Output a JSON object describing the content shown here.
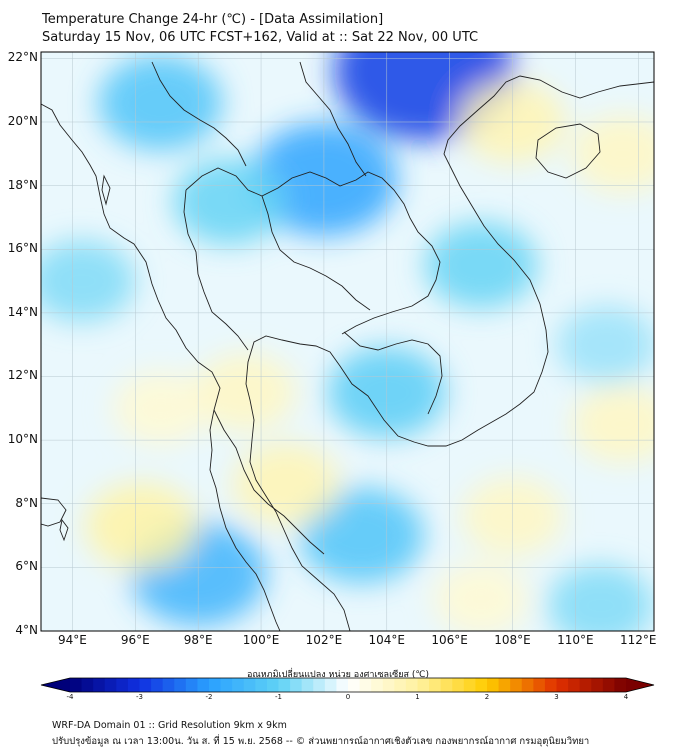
{
  "title": {
    "line1": "Temperature Change 24-hr (℃) - [Data Assimilation]",
    "line2": "Saturday 15 Nov, 06 UTC FCST+162, Valid at :: Sat 22 Nov, 00 UTC"
  },
  "map": {
    "lon_range": [
      93,
      112.5
    ],
    "lat_range": [
      4,
      22.2
    ],
    "lat_ticks": [
      {
        "value": 22,
        "label": "22°N"
      },
      {
        "value": 20,
        "label": "20°N"
      },
      {
        "value": 18,
        "label": "18°N"
      },
      {
        "value": 16,
        "label": "16°N"
      },
      {
        "value": 14,
        "label": "14°N"
      },
      {
        "value": 12,
        "label": "12°N"
      },
      {
        "value": 10,
        "label": "10°N"
      },
      {
        "value": 8,
        "label": "8°N"
      },
      {
        "value": 6,
        "label": "6°N"
      },
      {
        "value": 4,
        "label": "4°N"
      }
    ],
    "lon_ticks": [
      {
        "value": 94,
        "label": "94°E"
      },
      {
        "value": 96,
        "label": "96°E"
      },
      {
        "value": 98,
        "label": "98°E"
      },
      {
        "value": 100,
        "label": "100°E"
      },
      {
        "value": 102,
        "label": "102°E"
      },
      {
        "value": 104,
        "label": "104°E"
      },
      {
        "value": 106,
        "label": "106°E"
      },
      {
        "value": 108,
        "label": "108°E"
      },
      {
        "value": 110,
        "label": "110°E"
      },
      {
        "value": 112,
        "label": "112°E"
      }
    ],
    "anomalies_degC": [
      {
        "lon": 105.2,
        "lat": 21.6,
        "value": -1.8
      },
      {
        "lon": 102.0,
        "lat": 18.2,
        "value": -1.2
      },
      {
        "lon": 96.8,
        "lat": 20.6,
        "value": -0.8
      },
      {
        "lon": 99.0,
        "lat": 17.5,
        "value": -0.6
      },
      {
        "lon": 98.0,
        "lat": 5.8,
        "value": -1.0
      },
      {
        "lon": 104.0,
        "lat": 11.5,
        "value": -0.7
      },
      {
        "lon": 103.2,
        "lat": 7.0,
        "value": -0.8
      },
      {
        "lon": 107.0,
        "lat": 15.5,
        "value": -0.6
      },
      {
        "lon": 110.8,
        "lat": 4.8,
        "value": -0.5
      },
      {
        "lon": 111.0,
        "lat": 13.0,
        "value": -0.4
      },
      {
        "lon": 94.3,
        "lat": 15.0,
        "value": -0.5
      },
      {
        "lon": 108.0,
        "lat": 20.0,
        "value": 0.5
      },
      {
        "lon": 111.5,
        "lat": 19.0,
        "value": 0.4
      },
      {
        "lon": 96.2,
        "lat": 7.3,
        "value": 0.6
      },
      {
        "lon": 100.8,
        "lat": 8.6,
        "value": 0.5
      },
      {
        "lon": 99.5,
        "lat": 11.5,
        "value": 0.4
      },
      {
        "lon": 108.0,
        "lat": 7.6,
        "value": 0.4
      },
      {
        "lon": 111.5,
        "lat": 10.5,
        "value": 0.4
      },
      {
        "lon": 96.8,
        "lat": 11.0,
        "value": 0.3
      },
      {
        "lon": 107.0,
        "lat": 5.0,
        "value": 0.3
      }
    ]
  },
  "colorbar": {
    "label": "อุณหภูมิเปลี่ยนแปลง หน่วย องศาเซลเซียส (℃)",
    "min": -4,
    "max": 4,
    "ticks": [
      "-4",
      "-3",
      "-2",
      "-1",
      "0",
      "1",
      "2",
      "3",
      "4"
    ],
    "colors": [
      "#00007a",
      "#1030e0",
      "#2aa0ff",
      "#5fd2f5",
      "#ffffff",
      "#fff2a0",
      "#ffcc00",
      "#e03000",
      "#7a0000"
    ]
  },
  "footer": {
    "line1": "WRF-DA Domain 01 :: Grid Resolution 9km x 9km",
    "line2": "ปรับปรุงข้อมูล ณ เวลา 13:00น. วัน ส. ที่ 15 พ.ย. 2568 -- © ส่วนพยากรณ์อากาศเชิงตัวเลข กองพยากรณ์อากาศ กรมอุตุนิยมวิทยา"
  }
}
